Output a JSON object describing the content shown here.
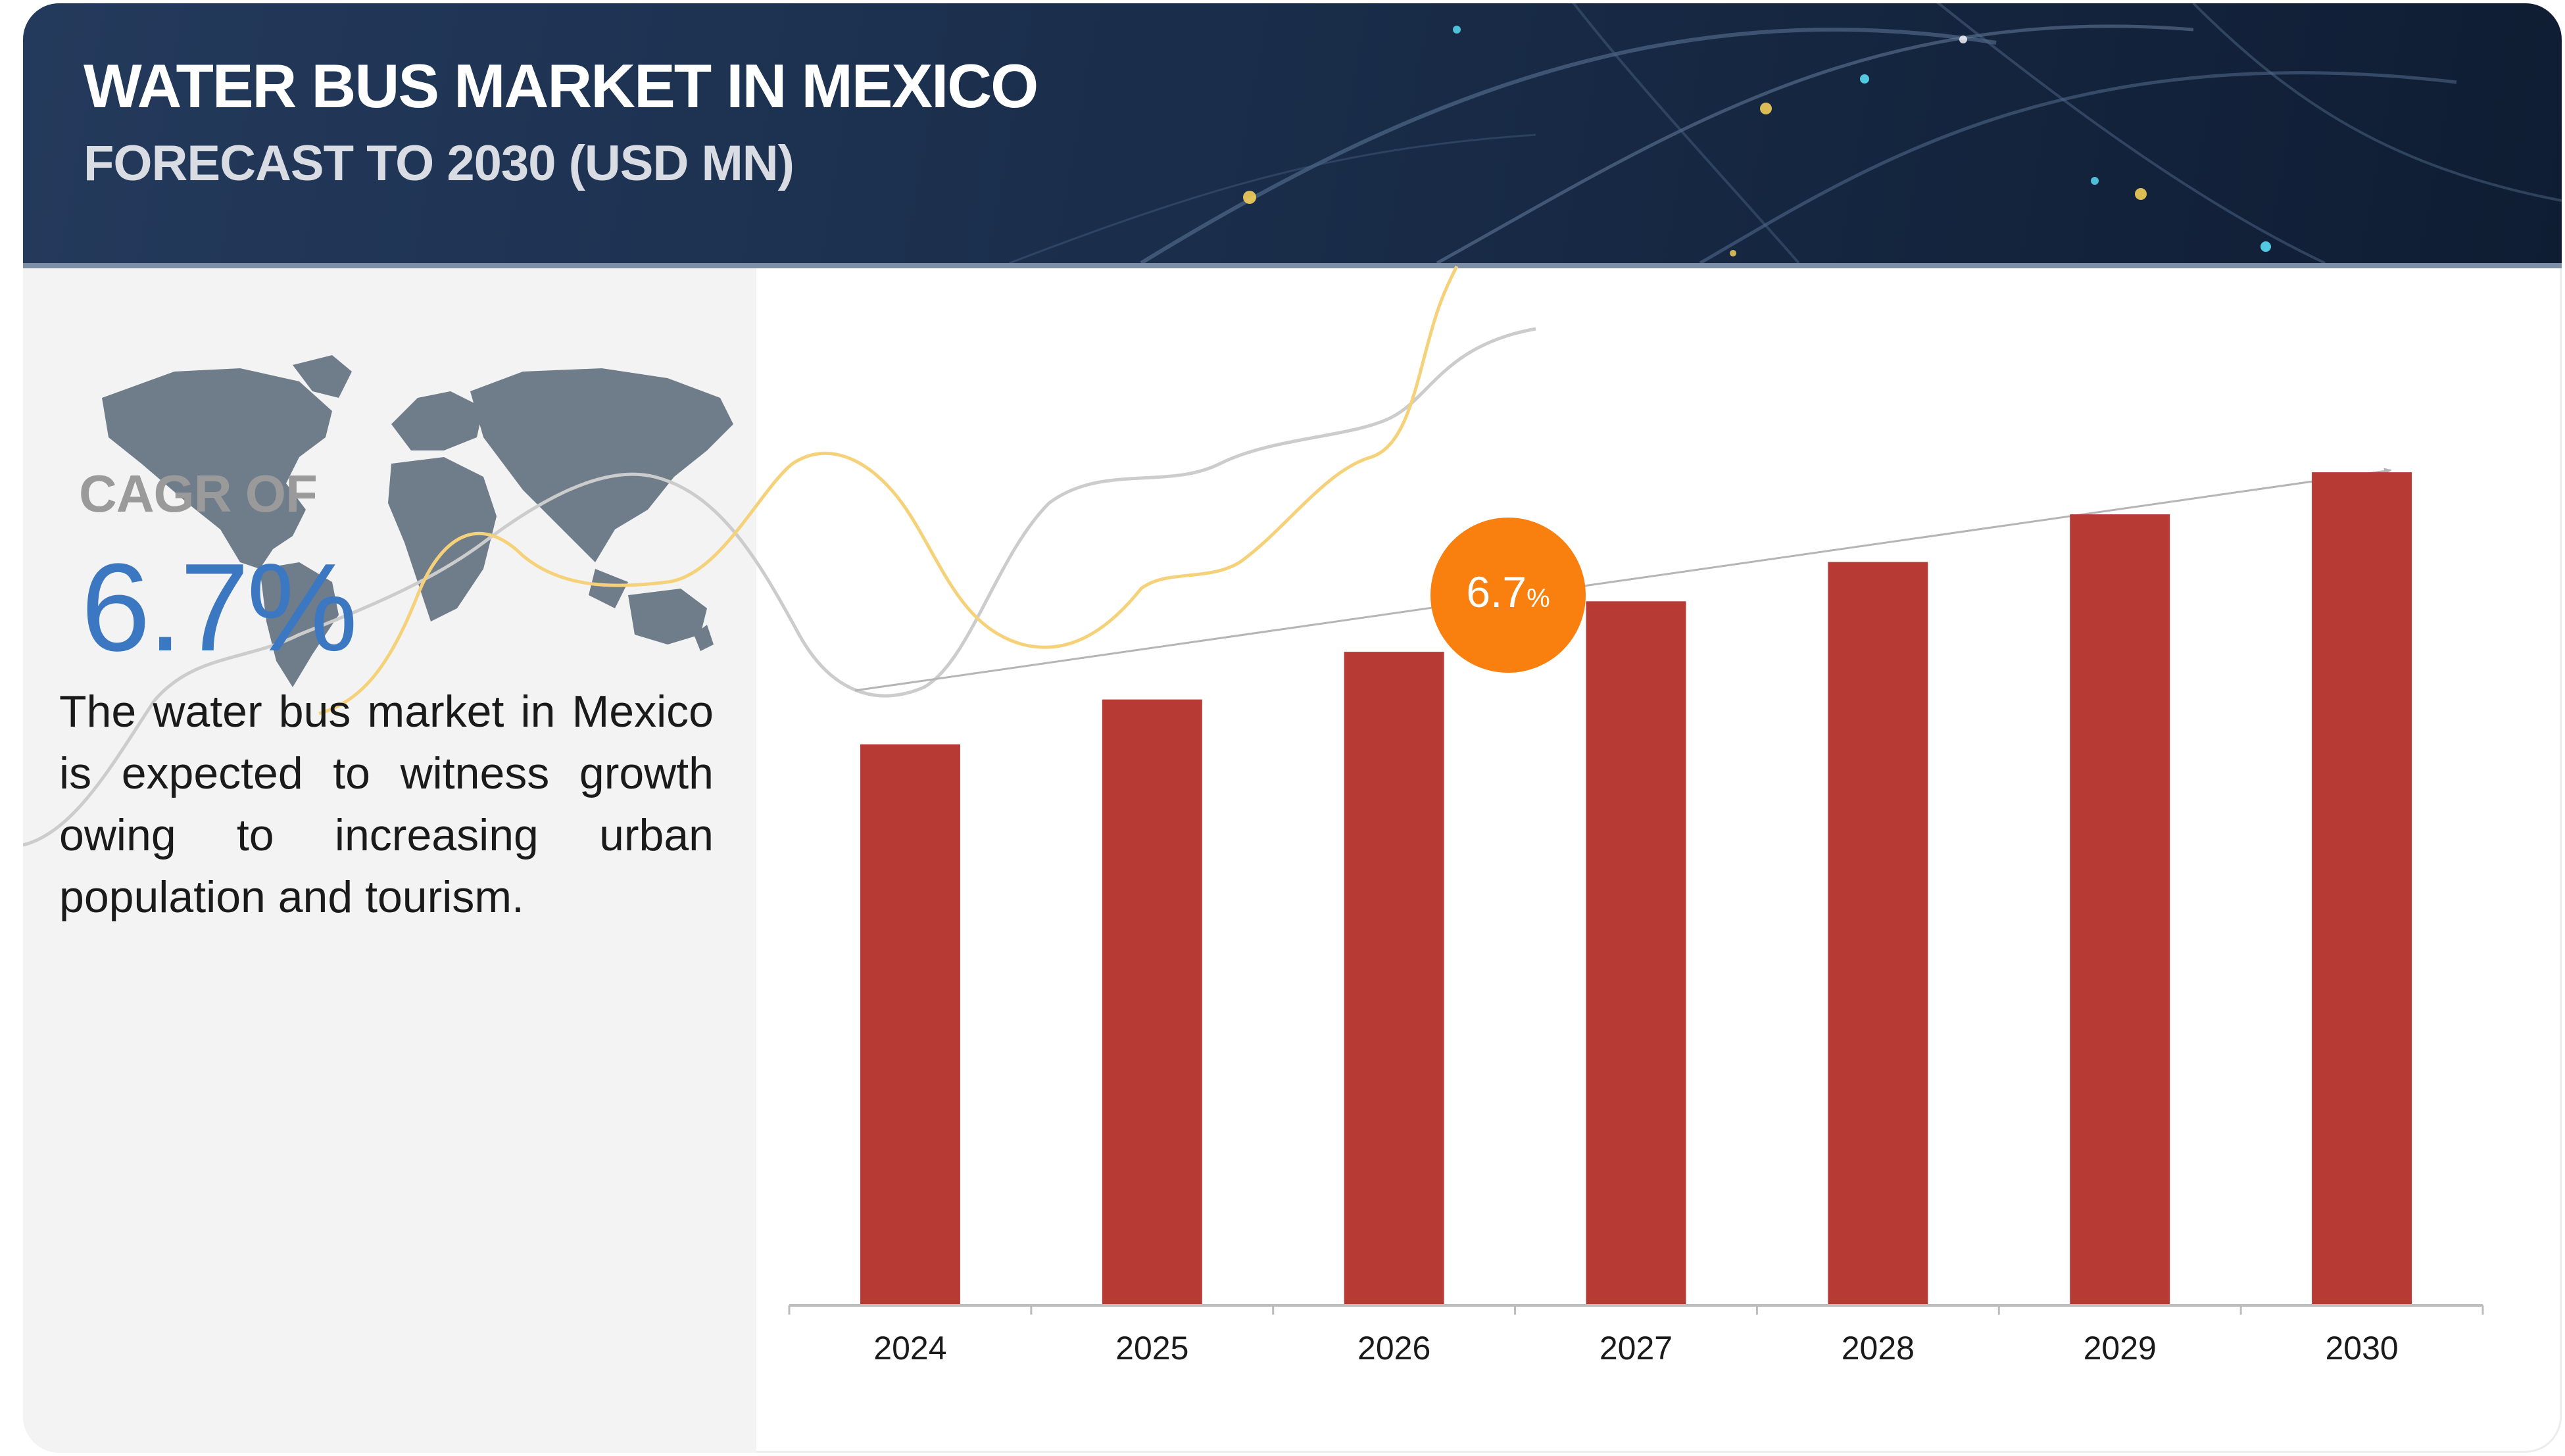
{
  "header": {
    "title": "WATER BUS MARKET IN MEXICO",
    "subtitle": "FORECAST TO 2030 (USD MN)"
  },
  "sidebar": {
    "cagr_label": "CAGR OF",
    "cagr_value": "6.7%",
    "description": "The water bus market in Mexico is expected to witness growth owing to increasing urban population and tourism."
  },
  "badge": {
    "value": "6.7",
    "unit": "%"
  },
  "colors": {
    "bar": "#b83a34",
    "badge": "#f97f0f",
    "cagr_value": "#3c78c2",
    "banner": "#1b2f4d"
  },
  "chart_data": {
    "type": "bar",
    "categories": [
      "2024",
      "2025",
      "2026",
      "2027",
      "2028",
      "2029",
      "2030"
    ],
    "values": [
      100,
      108,
      116.5,
      125.5,
      132.5,
      141,
      148.5
    ],
    "ylim": [
      0,
      160
    ],
    "grid": false,
    "legend": "none",
    "annotations": [
      "6.7%"
    ]
  }
}
